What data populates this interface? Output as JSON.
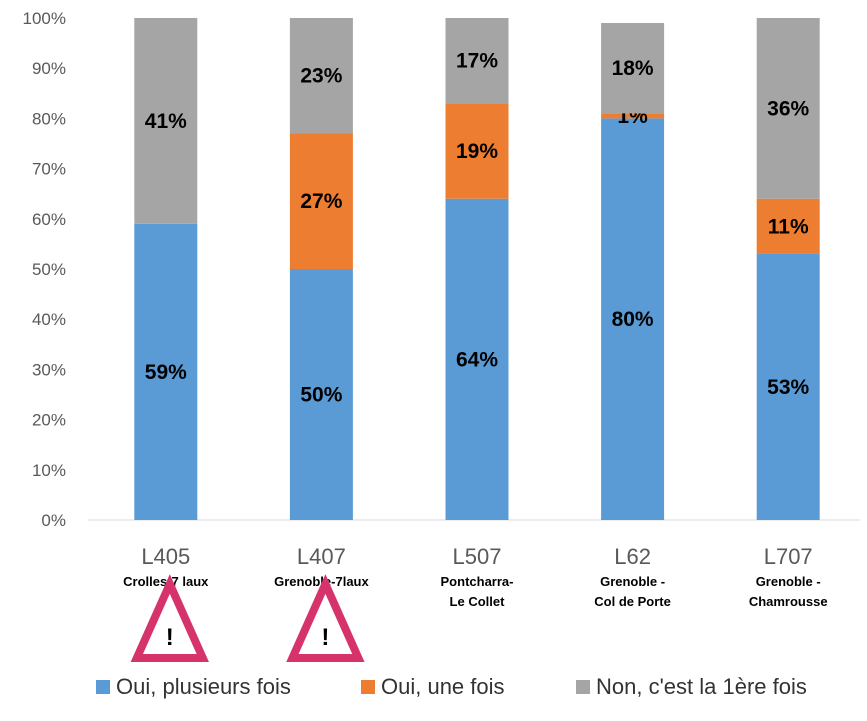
{
  "chart_data": {
    "type": "bar",
    "stacked": true,
    "categories": [
      "L405",
      "L407",
      "L507",
      "L62",
      "L707"
    ],
    "category_sublabels": [
      [
        "Crolles-7 laux"
      ],
      [
        "Grenoble-7laux"
      ],
      [
        "Pontcharra-",
        "Le Collet"
      ],
      [
        "Grenoble -",
        "Col de Porte"
      ],
      [
        "Grenoble -",
        "Chamrousse"
      ]
    ],
    "series": [
      {
        "name": "Oui, plusieurs fois",
        "color": "#5b9bd5",
        "values": [
          59,
          50,
          64,
          80,
          53
        ],
        "labels": [
          "59%",
          "50%",
          "64%",
          "80%",
          "53%"
        ]
      },
      {
        "name": "Oui, une fois",
        "color": "#ed7d31",
        "values": [
          0,
          27,
          19,
          1,
          11
        ],
        "labels": [
          "",
          "27%",
          "19%",
          "1%",
          "11%"
        ]
      },
      {
        "name": "Non, c'est la 1ère fois",
        "color": "#a5a5a5",
        "values": [
          41,
          23,
          17,
          18,
          36
        ],
        "labels": [
          "41%",
          "23%",
          "17%",
          "18%",
          "36%"
        ]
      }
    ],
    "ylim": [
      0,
      100
    ],
    "y_ticks": [
      "0%",
      "10%",
      "20%",
      "30%",
      "40%",
      "50%",
      "60%",
      "70%",
      "80%",
      "90%",
      "100%"
    ],
    "grid": false,
    "legend_position": "bottom",
    "warning_icons": [
      {
        "category": "L405",
        "symbol": "!",
        "color": "#d6336c"
      },
      {
        "category": "L407",
        "symbol": "!",
        "color": "#d6336c"
      }
    ]
  }
}
